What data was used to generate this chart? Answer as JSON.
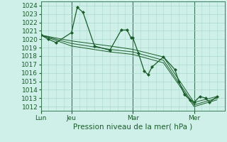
{
  "background_color": "#cff0e8",
  "grid_color": "#aad8cc",
  "line_color": "#1a5c2a",
  "marker_color": "#1a5c2a",
  "ylim": [
    1011.5,
    1024.5
  ],
  "yticks": [
    1012,
    1013,
    1014,
    1015,
    1016,
    1017,
    1018,
    1019,
    1020,
    1021,
    1022,
    1023,
    1024
  ],
  "xlabel": "Pression niveau de la mer( hPa )",
  "xlabel_fontsize": 7.5,
  "tick_fontsize": 6.5,
  "xtick_labels": [
    "Lun",
    "Jeu",
    "Mar",
    "Mer"
  ],
  "xtick_positions": [
    0,
    16,
    48,
    80
  ],
  "xlim": [
    0,
    96
  ],
  "vline_color": "#3a7a5a",
  "series": [
    {
      "x": [
        0,
        4,
        8,
        16,
        19,
        22,
        28,
        36,
        42,
        45,
        47,
        48,
        51,
        54,
        56,
        58,
        64,
        70,
        72,
        75,
        78,
        80,
        83,
        86,
        88,
        92
      ],
      "y": [
        1020.5,
        1020.0,
        1019.6,
        1020.8,
        1023.8,
        1023.2,
        1019.2,
        1018.7,
        1021.1,
        1021.1,
        1020.2,
        1020.2,
        1018.3,
        1016.2,
        1015.8,
        1016.7,
        1017.9,
        1016.4,
        1015.0,
        1013.4,
        1012.8,
        1012.5,
        1013.2,
        1013.0,
        1012.5,
        1013.2
      ],
      "with_markers": true
    },
    {
      "x": [
        0,
        16,
        36,
        48,
        64,
        80,
        92
      ],
      "y": [
        1020.5,
        1019.8,
        1019.2,
        1018.8,
        1017.9,
        1012.5,
        1013.2
      ],
      "with_markers": false
    },
    {
      "x": [
        0,
        16,
        36,
        48,
        64,
        80,
        92
      ],
      "y": [
        1020.5,
        1019.5,
        1018.8,
        1018.5,
        1017.5,
        1012.2,
        1013.0
      ],
      "with_markers": false
    },
    {
      "x": [
        0,
        16,
        36,
        48,
        64,
        80,
        92
      ],
      "y": [
        1020.5,
        1019.2,
        1018.5,
        1018.2,
        1017.2,
        1012.0,
        1012.8
      ],
      "with_markers": false
    }
  ]
}
